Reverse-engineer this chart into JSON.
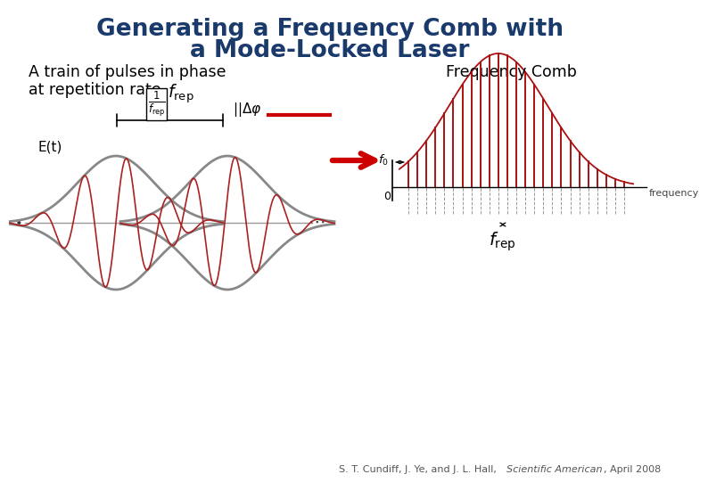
{
  "title_line1": "Generating a Frequency Comb with",
  "title_line2": "a Mode-Locked Laser",
  "title_color": "#1a3a6b",
  "title_fontsize": 19,
  "left_label1": "A train of pulses in phase",
  "left_label2_pre": "at repetition rate ",
  "right_label": "Frequency Comb",
  "et_label": "E(t)",
  "citation_normal": "S. T. Cundiff, J. Ye, and J. L. Hall, ",
  "citation_italic": "Scientific American",
  "citation_end": ", April 2008",
  "background_color": "#ffffff",
  "pulse_envelope_color": "#888888",
  "pulse_carrier_color": "#aa2222",
  "arrow_color": "#cc0000",
  "comb_color": "#aa1111",
  "bracket_color": "#000000",
  "text_color": "#000000"
}
